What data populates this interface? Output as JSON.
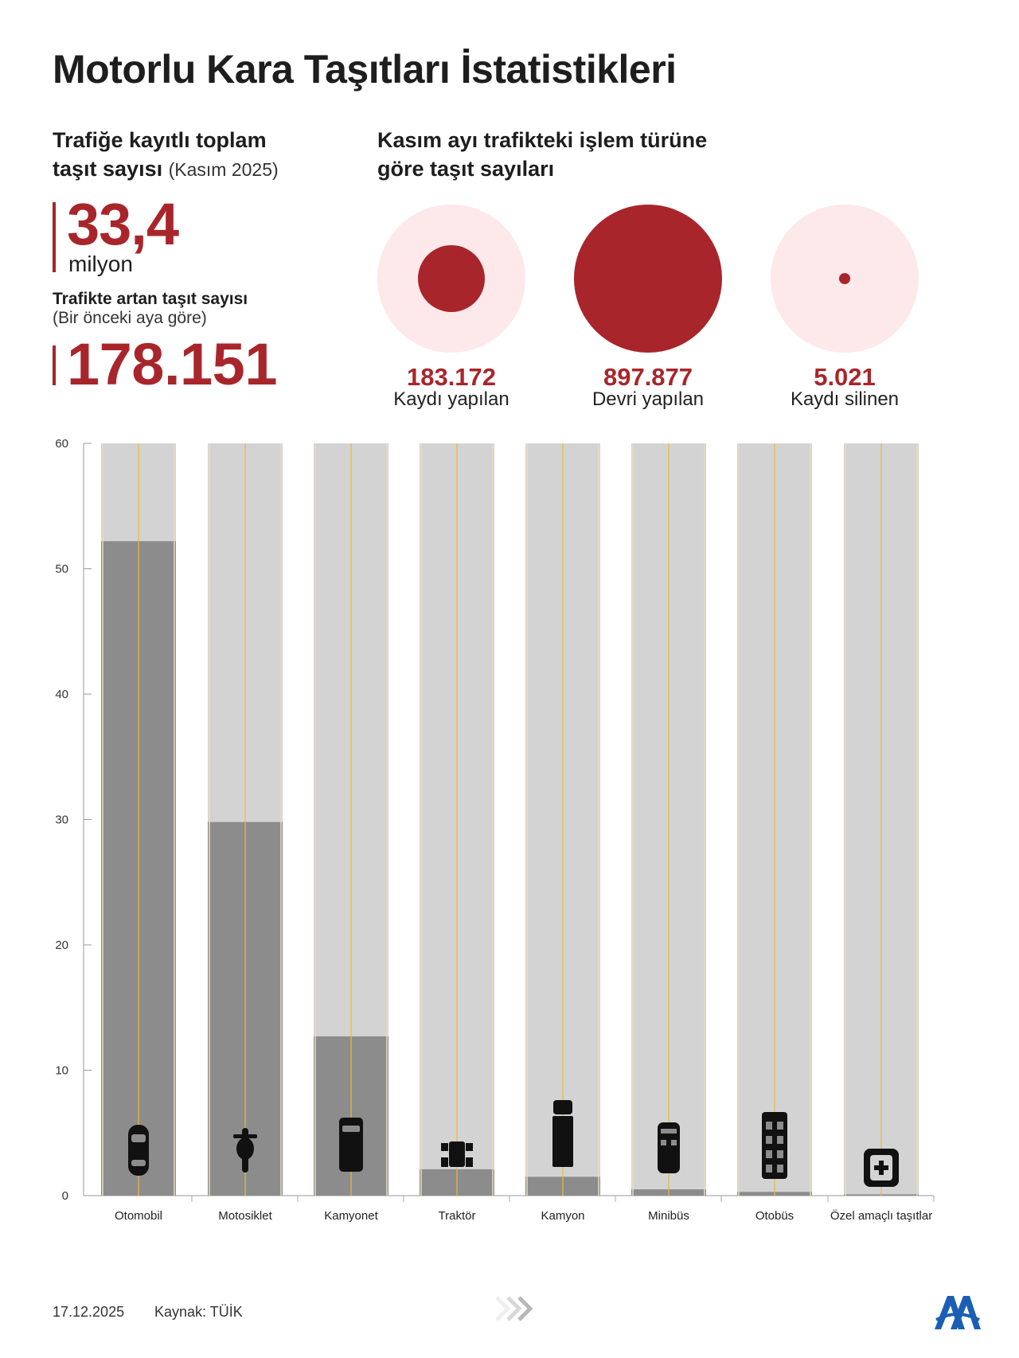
{
  "title": "Motorlu Kara Taşıtları İstatistikleri",
  "total": {
    "heading_line1": "Trafiğe kayıtlı toplam",
    "heading_line2": "taşıt sayısı",
    "heading_note": "(Kasım 2025)",
    "value": "33,4",
    "unit": "milyon"
  },
  "increase": {
    "heading": "Trafikte artan taşıt sayısı",
    "subheading": "(Bir önceki aya göre)",
    "value": "178.151"
  },
  "operations": {
    "heading_line1": "Kasım ayı trafikteki işlem türüne",
    "heading_line2": "göre taşıt sayıları",
    "items": [
      {
        "value": "183.172",
        "label": "Kaydı yapılan",
        "amount": 183172
      },
      {
        "value": "897.877",
        "label": "Devri yapılan",
        "amount": 897877
      },
      {
        "value": "5.021",
        "label": "Kaydı silinen",
        "amount": 5021
      }
    ],
    "colors": {
      "fill": "#a8262b",
      "halo": "#fde8ea"
    }
  },
  "chart_data": {
    "type": "bar",
    "categories": [
      "Otomobil",
      "Motosiklet",
      "Kamyonet",
      "Traktör",
      "Kamyon",
      "Minibüs",
      "Otobüs",
      "Özel amaçlı taşıtlar"
    ],
    "values": [
      52.2,
      29.8,
      12.7,
      2.1,
      1.5,
      0.5,
      0.3,
      0.1
    ],
    "icons": [
      "car-icon",
      "motorcycle-icon",
      "pickup-truck-icon",
      "tractor-icon",
      "truck-icon",
      "minibus-icon",
      "bus-icon",
      "special-vehicle-icon"
    ],
    "y_ticks": [
      0,
      10,
      20,
      30,
      40,
      50,
      60
    ],
    "ylim": [
      0,
      60
    ],
    "title": "",
    "xlabel": "",
    "ylabel": "",
    "colors": {
      "bar": "#8c8c8c",
      "track": "#d3d3d3",
      "lane": "#e8b93a",
      "icon": "#111111"
    }
  },
  "footer": {
    "date": "17.12.2025",
    "source": "Kaynak: TÜİK"
  }
}
